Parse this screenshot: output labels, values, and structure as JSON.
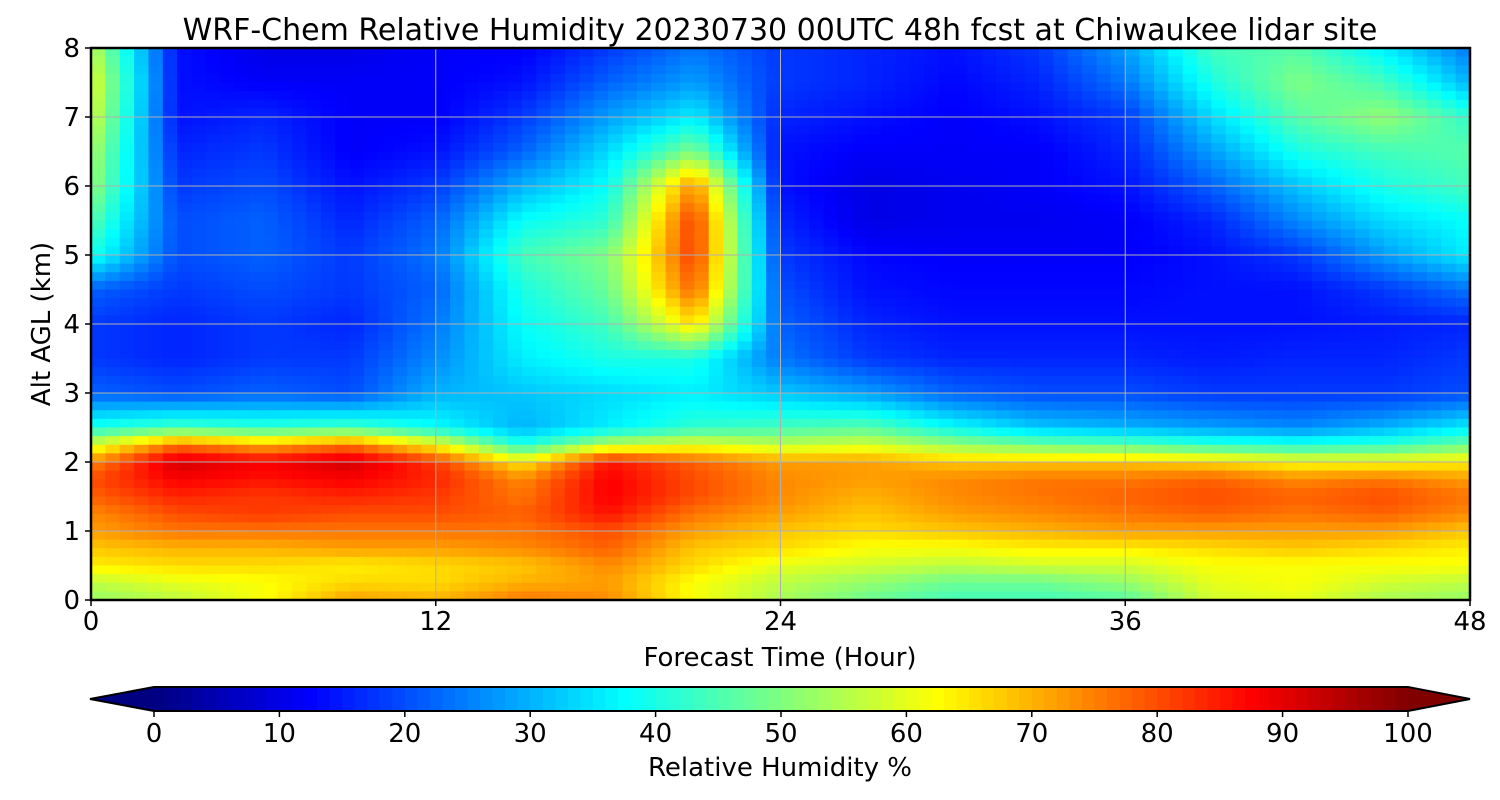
{
  "chart_data": {
    "type": "heatmap",
    "title": "WRF-Chem Relative Humidity 20230730 00UTC 48h fcst at Chiwaukee lidar site",
    "xlabel": "Forecast Time (Hour)",
    "ylabel": "Alt AGL (km)",
    "xlim": [
      0,
      48
    ],
    "ylim": [
      0,
      8
    ],
    "xticks": [
      "0",
      "12",
      "24",
      "36",
      "48"
    ],
    "yticks": [
      "0",
      "1",
      "2",
      "3",
      "4",
      "5",
      "6",
      "7",
      "8"
    ],
    "grid": true,
    "colormap": "jet",
    "colorbar": {
      "label": "Relative Humidity %",
      "min": 0,
      "max": 100,
      "ticks": [
        "0",
        "10",
        "20",
        "30",
        "40",
        "50",
        "60",
        "70",
        "80",
        "90",
        "100"
      ],
      "extend": "both",
      "orientation": "horizontal"
    },
    "x": [
      0,
      3,
      6,
      9,
      12,
      15,
      18,
      21,
      24,
      27,
      30,
      33,
      36,
      39,
      42,
      45,
      48
    ],
    "y": [
      0,
      0.25,
      0.5,
      0.75,
      1,
      1.25,
      1.5,
      1.75,
      2,
      2.25,
      2.5,
      3,
      3.5,
      4,
      4.5,
      5,
      5.5,
      6,
      6.5,
      7,
      7.5,
      8
    ],
    "values": [
      [
        52,
        56,
        62,
        72,
        70,
        76,
        74,
        62,
        54,
        48,
        44,
        44,
        46,
        58,
        60,
        54,
        52
      ],
      [
        56,
        60,
        62,
        66,
        66,
        70,
        72,
        62,
        56,
        52,
        48,
        48,
        52,
        60,
        62,
        58,
        56
      ],
      [
        64,
        66,
        66,
        64,
        66,
        68,
        74,
        66,
        60,
        58,
        56,
        58,
        58,
        62,
        62,
        62,
        62
      ],
      [
        68,
        70,
        70,
        72,
        72,
        74,
        78,
        68,
        66,
        62,
        62,
        64,
        64,
        66,
        68,
        66,
        64
      ],
      [
        72,
        76,
        76,
        76,
        76,
        76,
        80,
        72,
        68,
        66,
        68,
        70,
        72,
        72,
        72,
        72,
        68
      ],
      [
        74,
        80,
        82,
        80,
        80,
        78,
        86,
        76,
        72,
        68,
        72,
        74,
        76,
        78,
        76,
        78,
        74
      ],
      [
        78,
        84,
        82,
        84,
        82,
        76,
        88,
        80,
        74,
        70,
        74,
        76,
        78,
        80,
        78,
        80,
        76
      ],
      [
        80,
        88,
        86,
        88,
        84,
        74,
        88,
        80,
        74,
        72,
        74,
        76,
        76,
        78,
        74,
        76,
        72
      ],
      [
        74,
        92,
        88,
        92,
        82,
        64,
        86,
        78,
        72,
        72,
        68,
        68,
        68,
        66,
        62,
        62,
        64
      ],
      [
        58,
        76,
        70,
        76,
        62,
        40,
        56,
        60,
        56,
        58,
        52,
        48,
        46,
        42,
        40,
        42,
        48
      ],
      [
        40,
        44,
        42,
        44,
        38,
        30,
        36,
        42,
        44,
        46,
        38,
        32,
        30,
        28,
        26,
        30,
        36
      ],
      [
        22,
        20,
        22,
        20,
        30,
        32,
        34,
        36,
        32,
        28,
        22,
        20,
        20,
        18,
        18,
        18,
        20
      ],
      [
        18,
        16,
        18,
        18,
        26,
        36,
        40,
        40,
        24,
        18,
        16,
        16,
        16,
        15,
        16,
        16,
        18
      ],
      [
        18,
        16,
        18,
        16,
        24,
        38,
        44,
        66,
        22,
        16,
        14,
        14,
        14,
        14,
        14,
        15,
        16
      ],
      [
        22,
        18,
        20,
        18,
        22,
        40,
        48,
        78,
        20,
        14,
        13,
        13,
        13,
        14,
        14,
        18,
        24
      ],
      [
        40,
        20,
        22,
        18,
        24,
        44,
        50,
        82,
        18,
        13,
        12,
        12,
        12,
        14,
        18,
        28,
        36
      ],
      [
        46,
        20,
        22,
        16,
        22,
        38,
        42,
        82,
        16,
        10,
        11,
        11,
        12,
        16,
        26,
        34,
        38
      ],
      [
        52,
        18,
        20,
        14,
        18,
        30,
        38,
        74,
        14,
        10,
        11,
        12,
        14,
        22,
        32,
        40,
        44
      ],
      [
        54,
        16,
        18,
        12,
        14,
        22,
        34,
        50,
        14,
        12,
        12,
        12,
        16,
        28,
        40,
        44,
        46
      ],
      [
        58,
        14,
        16,
        12,
        12,
        18,
        28,
        36,
        16,
        14,
        12,
        14,
        18,
        34,
        46,
        52,
        42
      ],
      [
        60,
        14,
        12,
        12,
        12,
        14,
        22,
        28,
        18,
        16,
        13,
        16,
        24,
        40,
        50,
        44,
        30
      ],
      [
        56,
        14,
        10,
        10,
        12,
        12,
        18,
        24,
        18,
        16,
        14,
        18,
        28,
        44,
        46,
        36,
        24
      ]
    ]
  }
}
